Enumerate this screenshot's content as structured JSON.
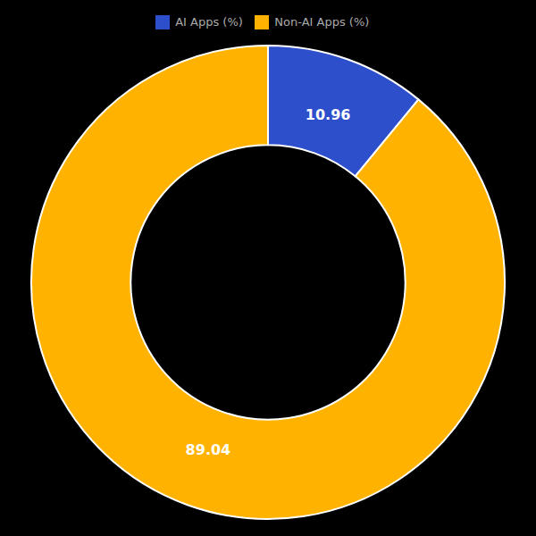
{
  "chart_data": {
    "type": "pie",
    "categories": [
      "AI Apps (%)",
      "Non-AI Apps (%)"
    ],
    "values": [
      10.96,
      89.04
    ],
    "colors": [
      "#2d4fcc",
      "#ffb300"
    ],
    "data_labels": true,
    "legend": "top"
  }
}
